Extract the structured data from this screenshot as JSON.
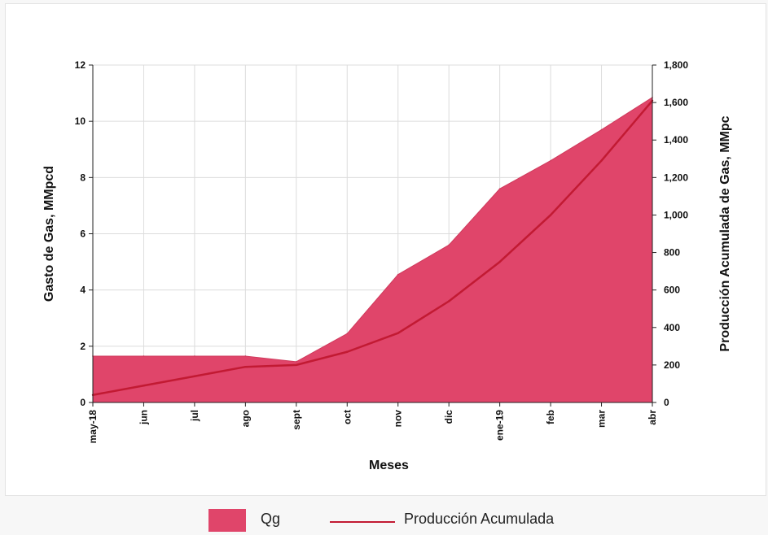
{
  "chart_data": {
    "type": "area",
    "title": "",
    "xlabel": "Meses",
    "ylabel": "Gasto de Gas, MMpcd",
    "y2label": "Producción  Acumulada de Gas, MMpc",
    "categories": [
      "may-18",
      "jun",
      "jul",
      "ago",
      "sept",
      "oct",
      "nov",
      "dic",
      "ene-19",
      "feb",
      "mar",
      "abr"
    ],
    "ylim": [
      0,
      12
    ],
    "y2lim": [
      0,
      1800
    ],
    "yticks": [
      "0",
      "2",
      "4",
      "6",
      "8",
      "10",
      "12"
    ],
    "y2ticks": [
      "0",
      "200",
      "400",
      "600",
      "800",
      "1,000",
      "1,200",
      "1,400",
      "1,600",
      "1,800"
    ],
    "grid": true,
    "legend_position": "bottom",
    "series": [
      {
        "name": "Qg",
        "type": "area",
        "axis": "left",
        "color": "#e0456a",
        "values": [
          1.65,
          1.65,
          1.65,
          1.65,
          1.45,
          2.45,
          4.55,
          5.6,
          7.6,
          8.6,
          9.7,
          10.85
        ]
      },
      {
        "name": "Producción Acumulada",
        "type": "line",
        "axis": "right",
        "color": "#c21a33",
        "values": [
          40,
          90,
          140,
          190,
          200,
          270,
          370,
          540,
          750,
          1000,
          1290,
          1610
        ]
      }
    ]
  },
  "legend": {
    "qg_label": "Qg",
    "cum_label": "Producción Acumulada"
  },
  "colors": {
    "area_fill": "#e0456a",
    "area_edge": "#cf3a5c",
    "line": "#c21a33",
    "grid": "#dcdcdc",
    "axis": "#222222"
  }
}
